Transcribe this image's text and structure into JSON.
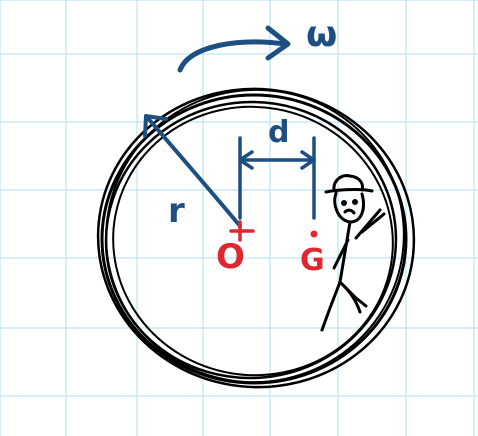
{
  "diagram": {
    "labels": {
      "omega": "ω",
      "radius": "r",
      "distance": "d",
      "center": "O",
      "mass_center": "G"
    },
    "colors": {
      "grid": "#bfe3f2",
      "ink": "#000000",
      "blue": "#1d4f80",
      "red": "#e0262e"
    },
    "icons": [
      "rotation-arrow-icon",
      "person-icon"
    ]
  }
}
